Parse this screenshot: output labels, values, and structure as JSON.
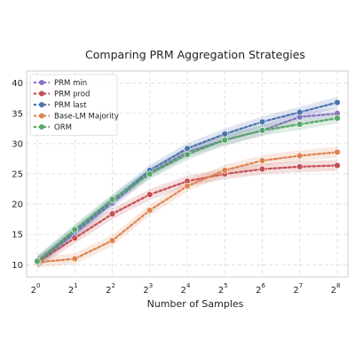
{
  "chart_data": {
    "type": "line",
    "title": "Comparing PRM Aggregation Strategies",
    "xlabel": "Number of Samples",
    "ylabel": "",
    "x": [
      0,
      1,
      2,
      3,
      4,
      5,
      6,
      7,
      8
    ],
    "x_ticks": [
      {
        "base": "2",
        "exp": "0"
      },
      {
        "base": "2",
        "exp": "1"
      },
      {
        "base": "2",
        "exp": "2"
      },
      {
        "base": "2",
        "exp": "3"
      },
      {
        "base": "2",
        "exp": "4"
      },
      {
        "base": "2",
        "exp": "5"
      },
      {
        "base": "2",
        "exp": "6"
      },
      {
        "base": "2",
        "exp": "7"
      },
      {
        "base": "2",
        "exp": "8"
      }
    ],
    "x_scale": "log2",
    "ylim": [
      8,
      42
    ],
    "y_ticks": [
      10,
      15,
      20,
      25,
      30,
      35,
      40
    ],
    "grid": true,
    "grid_style": "dashed",
    "legend_position": "top-left",
    "series": [
      {
        "name": "PRM min",
        "color": "#8a72c4",
        "values": [
          10.4,
          15.2,
          20.2,
          25.2,
          28.6,
          30.6,
          32.2,
          34.4,
          35.0
        ]
      },
      {
        "name": "PRM prod",
        "color": "#c44e52",
        "values": [
          10.4,
          14.4,
          18.4,
          21.6,
          23.8,
          25.0,
          25.8,
          26.2,
          26.4
        ]
      },
      {
        "name": "PRM last",
        "color": "#4c72b0",
        "values": [
          10.6,
          15.6,
          20.6,
          25.6,
          29.2,
          31.6,
          33.6,
          35.2,
          36.8
        ]
      },
      {
        "name": "Base-LM Majority",
        "color": "#dd8452",
        "values": [
          10.4,
          11.0,
          14.0,
          19.0,
          23.0,
          25.6,
          27.2,
          28.0,
          28.6
        ]
      },
      {
        "name": "ORM",
        "color": "#55a868",
        "values": [
          10.6,
          15.8,
          20.8,
          25.0,
          28.2,
          30.6,
          32.2,
          33.2,
          34.2
        ]
      }
    ]
  }
}
